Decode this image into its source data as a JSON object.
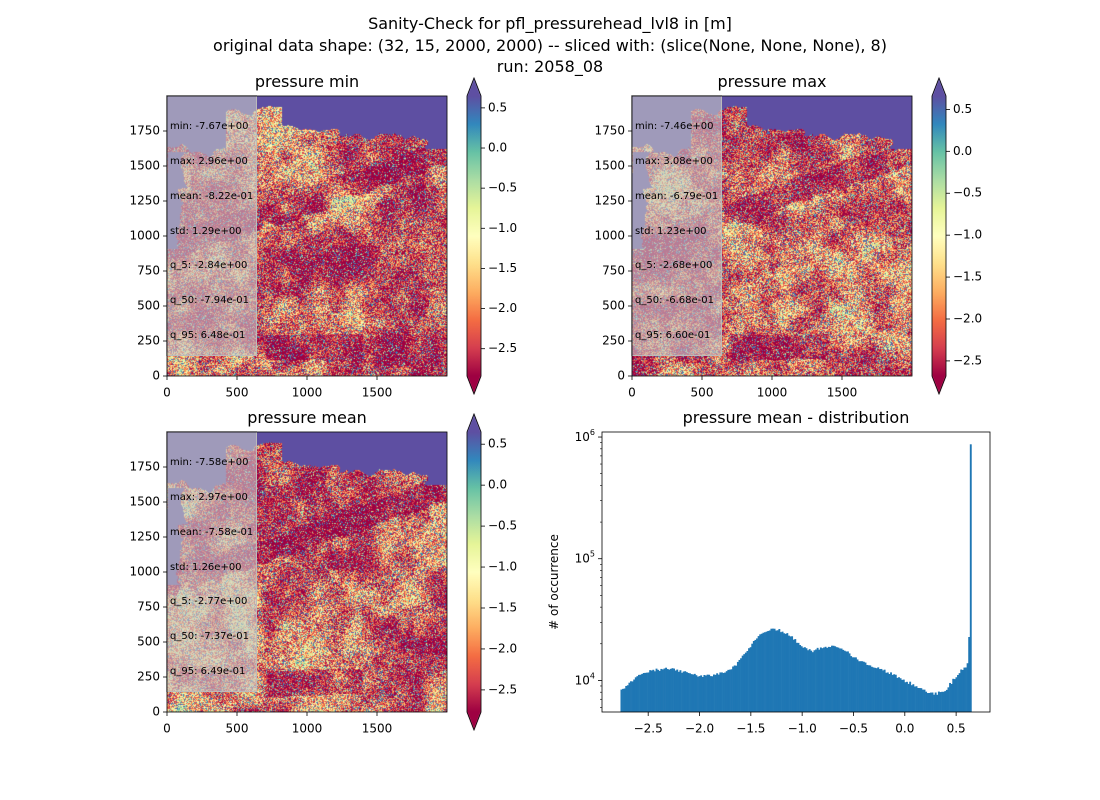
{
  "suptitle": [
    "Sanity-Check for pfl_pressurehead_lvl8 in [m]",
    "original data shape: (32, 15, 2000, 2000) -- sliced with: (slice(None, None, None), 8)",
    "run: 2058_08"
  ],
  "colors": {
    "ocean": "#5e4fa2",
    "histogram": "#1f77b4",
    "colormap": "Spectral",
    "colormap_stops": [
      "#9e0142",
      "#d53e4f",
      "#f46d43",
      "#fdae61",
      "#fee08b",
      "#ffffbf",
      "#e6f598",
      "#abdda4",
      "#66c2a5",
      "#3288bd",
      "#5e4fa2"
    ]
  },
  "chart_data": [
    {
      "type": "heatmap",
      "title": "pressure min",
      "xlim": [
        0,
        2000
      ],
      "ylim": [
        0,
        2000
      ],
      "xticks": [
        0,
        500,
        1000,
        1500
      ],
      "yticks": [
        0,
        250,
        500,
        750,
        1000,
        1250,
        1500,
        1750
      ],
      "colorbar": {
        "vmin": -2.84,
        "vmax": 0.648,
        "extend": "both",
        "ticks": [
          0.5,
          0.0,
          -0.5,
          -1.0,
          -1.5,
          -2.0,
          -2.5
        ],
        "tick_labels": [
          "0.5",
          "0.0",
          "−0.5",
          "−1.0",
          "−1.5",
          "−2.0",
          "−2.5"
        ]
      },
      "stats": [
        "min: -7.67e+00",
        "max: 2.96e+00",
        "mean: -8.22e-01",
        "std: 1.29e+00",
        "q_5: -2.84e+00",
        "q_50: -7.94e-01",
        "q_95: 6.48e-01"
      ]
    },
    {
      "type": "heatmap",
      "title": "pressure max",
      "xlim": [
        0,
        2000
      ],
      "ylim": [
        0,
        2000
      ],
      "xticks": [
        0,
        500,
        1000,
        1500
      ],
      "yticks": [
        0,
        250,
        500,
        750,
        1000,
        1250,
        1500,
        1750
      ],
      "colorbar": {
        "vmin": -2.68,
        "vmax": 0.66,
        "extend": "both",
        "ticks": [
          0.5,
          0.0,
          -0.5,
          -1.0,
          -1.5,
          -2.0,
          -2.5
        ],
        "tick_labels": [
          "0.5",
          "0.0",
          "−0.5",
          "−1.0",
          "−1.5",
          "−2.0",
          "−2.5"
        ]
      },
      "stats": [
        "min: -7.46e+00",
        "max: 3.08e+00",
        "mean: -6.79e-01",
        "std: 1.23e+00",
        "q_5: -2.68e+00",
        "q_50: -6.68e-01",
        "q_95: 6.60e-01"
      ]
    },
    {
      "type": "heatmap",
      "title": "pressure mean",
      "xlim": [
        0,
        2000
      ],
      "ylim": [
        0,
        2000
      ],
      "xticks": [
        0,
        500,
        1000,
        1500
      ],
      "yticks": [
        0,
        250,
        500,
        750,
        1000,
        1250,
        1500,
        1750
      ],
      "colorbar": {
        "vmin": -2.77,
        "vmax": 0.649,
        "extend": "both",
        "ticks": [
          0.5,
          0.0,
          -0.5,
          -1.0,
          -1.5,
          -2.0,
          -2.5
        ],
        "tick_labels": [
          "0.5",
          "0.0",
          "−0.5",
          "−1.0",
          "−1.5",
          "−2.0",
          "−2.5"
        ]
      },
      "stats": [
        "min: -7.58e+00",
        "max: 2.97e+00",
        "mean: -7.58e-01",
        "std: 1.26e+00",
        "q_5: -2.77e+00",
        "q_50: -7.37e-01",
        "q_95: 6.49e-01"
      ]
    },
    {
      "type": "bar",
      "title": "pressure mean - distribution",
      "ylabel": "# of occurrence",
      "xlabel": "",
      "yscale": "log",
      "xlim": [
        -2.95,
        0.83
      ],
      "ylim": [
        5500,
        1100000
      ],
      "xticks": [
        -2.5,
        -2.0,
        -1.5,
        -1.0,
        -0.5,
        0.0,
        0.5
      ],
      "xtick_labels": [
        "−2.5",
        "−2.0",
        "−1.5",
        "−1.0",
        "−0.5",
        "0.0",
        "0.5"
      ],
      "ytick_labels": [
        {
          "value": 10000,
          "base": "10",
          "exp": "4"
        },
        {
          "value": 100000,
          "base": "10",
          "exp": "5"
        },
        {
          "value": 1000000,
          "base": "10",
          "exp": "6"
        }
      ],
      "histogram": {
        "range": [
          -2.77,
          0.649
        ],
        "profile": [
          [
            -2.77,
            8400
          ],
          [
            -2.7,
            9100
          ],
          [
            -2.6,
            11000
          ],
          [
            -2.5,
            11800
          ],
          [
            -2.4,
            12300
          ],
          [
            -2.3,
            12400
          ],
          [
            -2.2,
            12000
          ],
          [
            -2.1,
            11300
          ],
          [
            -2.0,
            10800
          ],
          [
            -1.9,
            11000
          ],
          [
            -1.8,
            11300
          ],
          [
            -1.7,
            12200
          ],
          [
            -1.6,
            14800
          ],
          [
            -1.5,
            19500
          ],
          [
            -1.4,
            24500
          ],
          [
            -1.3,
            26500
          ],
          [
            -1.2,
            25500
          ],
          [
            -1.1,
            22500
          ],
          [
            -1.0,
            19000
          ],
          [
            -0.9,
            17500
          ],
          [
            -0.8,
            18500
          ],
          [
            -0.7,
            19500
          ],
          [
            -0.6,
            18000
          ],
          [
            -0.5,
            15500
          ],
          [
            -0.4,
            14000
          ],
          [
            -0.3,
            13000
          ],
          [
            -0.2,
            12000
          ],
          [
            -0.1,
            11000
          ],
          [
            0.0,
            10000
          ],
          [
            0.1,
            9000
          ],
          [
            0.2,
            8200
          ],
          [
            0.3,
            7800
          ],
          [
            0.38,
            8000
          ],
          [
            0.45,
            9500
          ],
          [
            0.52,
            11500
          ],
          [
            0.58,
            12500
          ],
          [
            0.61,
            13500
          ],
          [
            0.63,
            27000
          ],
          [
            0.649,
            850000
          ]
        ]
      }
    }
  ]
}
